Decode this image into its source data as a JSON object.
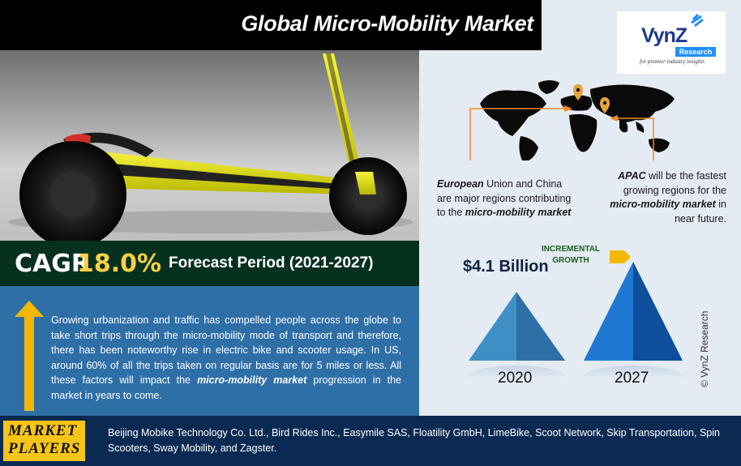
{
  "title": "Global Micro-Mobility Market",
  "logo": {
    "brand": "VynZ",
    "sub": "Research",
    "tagline": "for premier industry insights"
  },
  "cagr": {
    "label": "CAGR",
    "value": "18.0%",
    "forecast": "Forecast Period (2021-2027)"
  },
  "description": {
    "part1": "Growing urbanization and traffic has compelled people across the globe to take short trips through the micro-mobility mode of transport and therefore, there has been noteworthy rise in electric bike and scooter usage. In US, around 60% of all the trips taken on regular basis are for 5 miles or less. All these factors will impact the ",
    "bold": "micro-mobility market",
    "part2": " progression in the market in years to come."
  },
  "regions": {
    "eu": {
      "lead": "European",
      "text": " Union and China are major regions contributing to the ",
      "bold": "micro-mobility market"
    },
    "apac": {
      "lead": "APAC",
      "text1": " will be the fastest growing regions for the ",
      "bold": "micro-mobility market",
      "text2": " in near future."
    }
  },
  "market": {
    "value_2027": "$4.1 Billion",
    "incremental_line1": "INCREMENTAL",
    "incremental_line2": "GROWTH",
    "year_a": "2020",
    "year_b": "2027"
  },
  "copyright": "© VynZ Research",
  "players": {
    "label_line1": "MARKET",
    "label_line2": "PLAYERS",
    "list": "Beijing Mobike Technology Co. Ltd., Bird Rides Inc., Easymile SAS, Floatility GmbH, LimeBike, Scoot Network, Skip Transportation, Spin Scooters, Sway Mobility, and Zagster."
  },
  "colors": {
    "title_bg": "#000000",
    "cagr_bg": "#07311f",
    "cagr_accent": "#f7d040",
    "desc_bg": "#2f6fa8",
    "players_bg": "#0b2a52",
    "players_label_bg": "#f5c518",
    "arrow": "#f5b800",
    "connector": "#f08a24"
  }
}
